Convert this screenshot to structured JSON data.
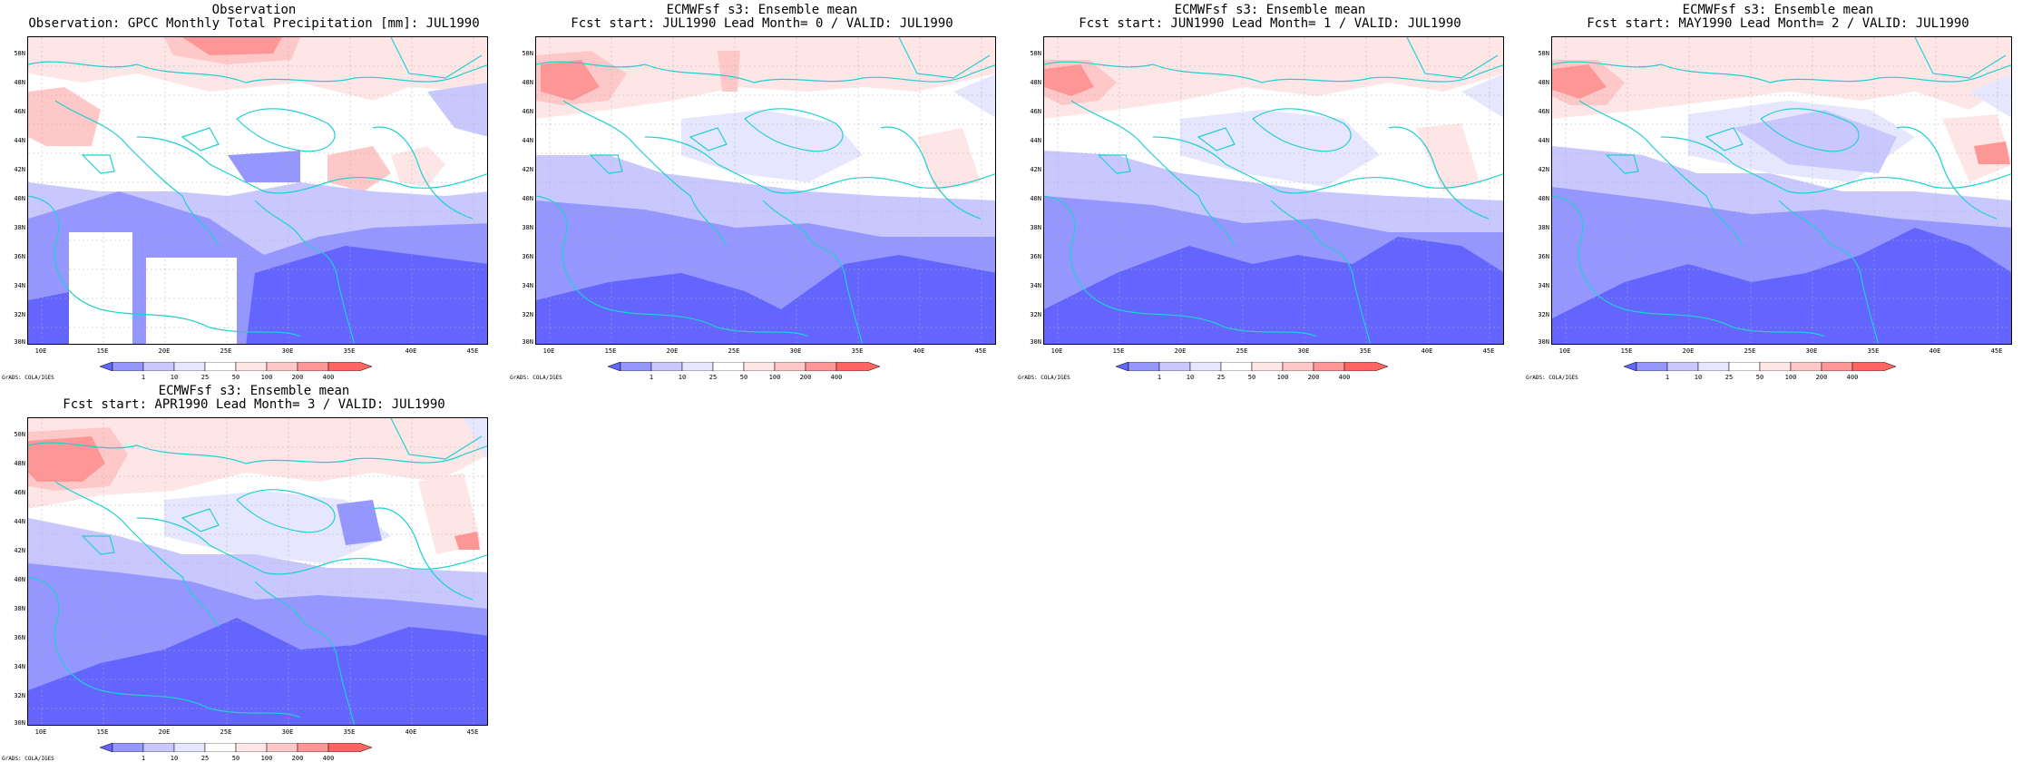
{
  "panels": [
    {
      "id": "obs",
      "title_line1": "Observation",
      "title_line2": "Observation: GPCC Monthly Total Precipitation [mm]: JUL1990"
    },
    {
      "id": "lead0",
      "title_line1": "ECMWFsf s3: Ensemble mean",
      "title_line2": "Fcst start: JUL1990   Lead Month= 0 / VALID: JUL1990"
    },
    {
      "id": "lead1",
      "title_line1": "ECMWFsf s3: Ensemble mean",
      "title_line2": "Fcst start: JUN1990   Lead Month= 1 / VALID: JUL1990"
    },
    {
      "id": "lead2",
      "title_line1": "ECMWFsf s3: Ensemble mean",
      "title_line2": "Fcst start: MAY1990   Lead Month= 2 / VALID: JUL1990"
    },
    {
      "id": "lead3",
      "title_line1": "ECMWFsf s3: Ensemble mean",
      "title_line2": "Fcst start: APR1990   Lead Month= 3 / VALID: JUL1990"
    }
  ],
  "axes": {
    "lat_labels": [
      "50N",
      "48N",
      "46N",
      "44N",
      "42N",
      "40N",
      "38N",
      "36N",
      "34N",
      "32N",
      "30N"
    ],
    "lon_labels": [
      "10E",
      "15E",
      "20E",
      "25E",
      "30E",
      "35E",
      "40E",
      "45E"
    ]
  },
  "colorbar": {
    "levels": [
      "1",
      "10",
      "25",
      "50",
      "100",
      "200",
      "400"
    ],
    "colors": [
      "#6464ff",
      "#9696ff",
      "#c8c8ff",
      "#e6e6ff",
      "#ffffff",
      "#ffe6e6",
      "#ffc8c8",
      "#ff9696",
      "#ff6464"
    ]
  },
  "credit": "GrADS: COLA/IGES",
  "coastline_color": "#20d0d0"
}
